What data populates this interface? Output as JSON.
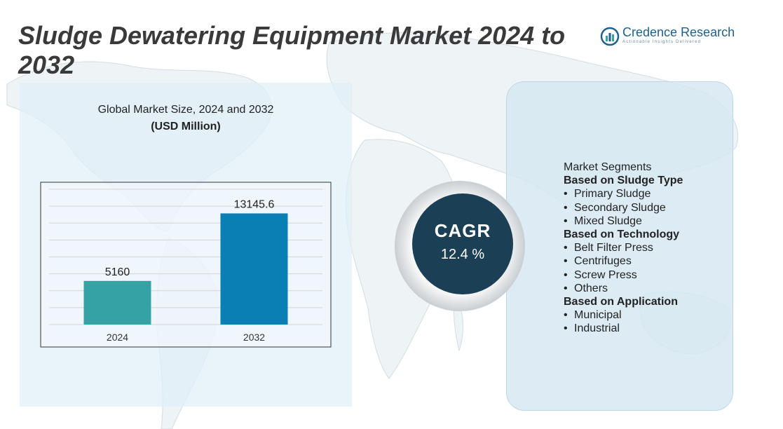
{
  "header": {
    "title": "Sludge Dewatering Equipment Market 2024 to 2032"
  },
  "logo": {
    "name": "Credence Research",
    "tagline": "Actionable Insights Delivered"
  },
  "chart_header": {
    "line1": "Global Market Size, 2024 and 2032",
    "line2": "(USD Million)"
  },
  "chart_data": {
    "type": "bar",
    "categories": [
      "2024",
      "2032"
    ],
    "values": [
      5160,
      13145.6
    ],
    "value_labels": [
      "5160",
      "13145.6"
    ],
    "colors": [
      "#35a3a6",
      "#0a7fb4"
    ],
    "ylim": [
      0,
      16000
    ],
    "grid": true,
    "legend": "none"
  },
  "cagr": {
    "label": "CAGR",
    "value": "12.4 %"
  },
  "segments": {
    "heading": "Market Segments",
    "groups": [
      {
        "title": "Based on Sludge Type",
        "items": [
          "Primary Sludge",
          "Secondary Sludge",
          "Mixed Sludge"
        ]
      },
      {
        "title": "Based on Technology",
        "items": [
          "Belt Filter Press",
          "Centrifuges",
          "Screw Press",
          "Others"
        ]
      },
      {
        "title": "Based on Application",
        "items": [
          "Municipal",
          "Industrial"
        ]
      }
    ]
  },
  "colors": {
    "title_text": "#3a3a3a",
    "cagr_circle": "#1b3f55",
    "left_panel": "#e1eef8",
    "right_panel": "#d6e8f2"
  }
}
